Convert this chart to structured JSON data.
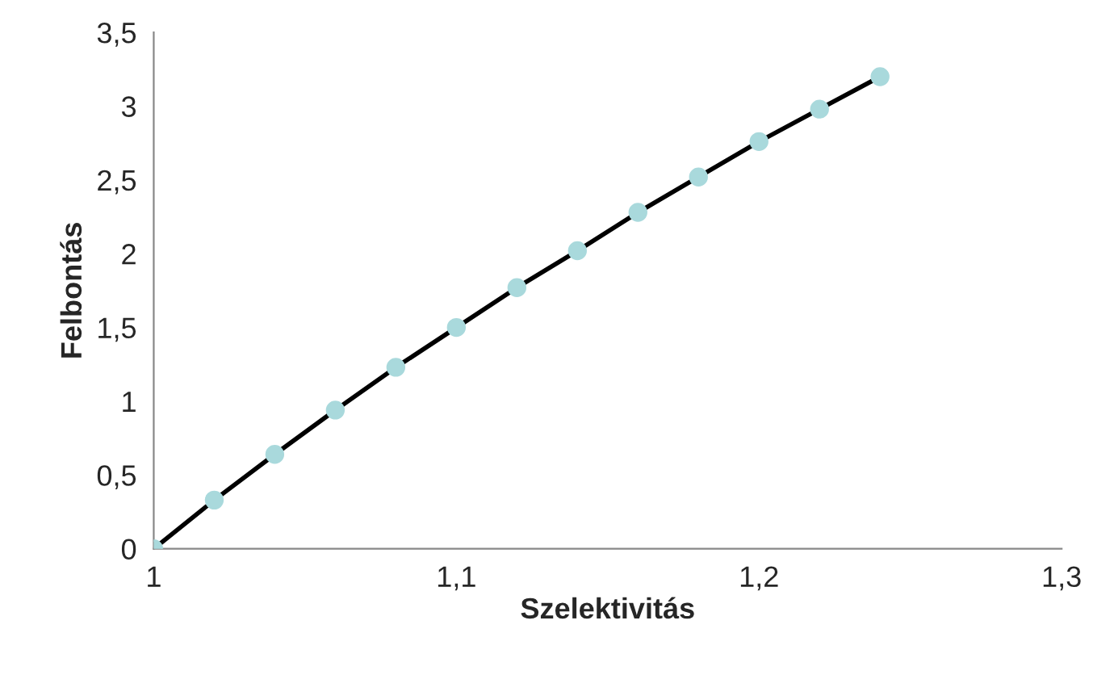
{
  "chart_data": {
    "type": "line",
    "xlabel": "Szelektivitás",
    "ylabel": "Felbontás",
    "x": [
      1,
      1.02,
      1.04,
      1.06,
      1.08,
      1.1,
      1.12,
      1.14,
      1.16,
      1.18,
      1.2,
      1.22,
      1.24
    ],
    "series": [
      {
        "color": "#000000",
        "values": [
          0,
          0.33,
          0.64,
          0.94,
          1.23,
          1.5,
          1.77,
          2.02,
          2.28,
          2.52,
          2.76,
          2.98,
          3.2
        ]
      },
      {
        "type": "scatter",
        "color": "#a9d9dc",
        "marker": "circle",
        "values": [
          0,
          0.33,
          0.64,
          0.94,
          1.23,
          1.5,
          1.77,
          2.02,
          2.28,
          2.52,
          2.76,
          2.98,
          3.2
        ]
      }
    ],
    "xlim": [
      1,
      1.3
    ],
    "xticks": [
      1,
      {
        "value": 1.1,
        "label": "1,1"
      },
      {
        "value": 1.2,
        "label": "1,2"
      },
      {
        "value": 1.3,
        "label": "1,3"
      }
    ],
    "ylim": [
      0,
      3.5
    ],
    "yticks": [
      0,
      {
        "value": 0.5,
        "label": "0,5"
      },
      1,
      {
        "value": 1.5,
        "label": "1,5"
      },
      2,
      {
        "value": 2.5,
        "label": "2,5"
      },
      3,
      {
        "value": 3.5,
        "label": "3,5"
      }
    ],
    "grid": false,
    "legend": false
  }
}
